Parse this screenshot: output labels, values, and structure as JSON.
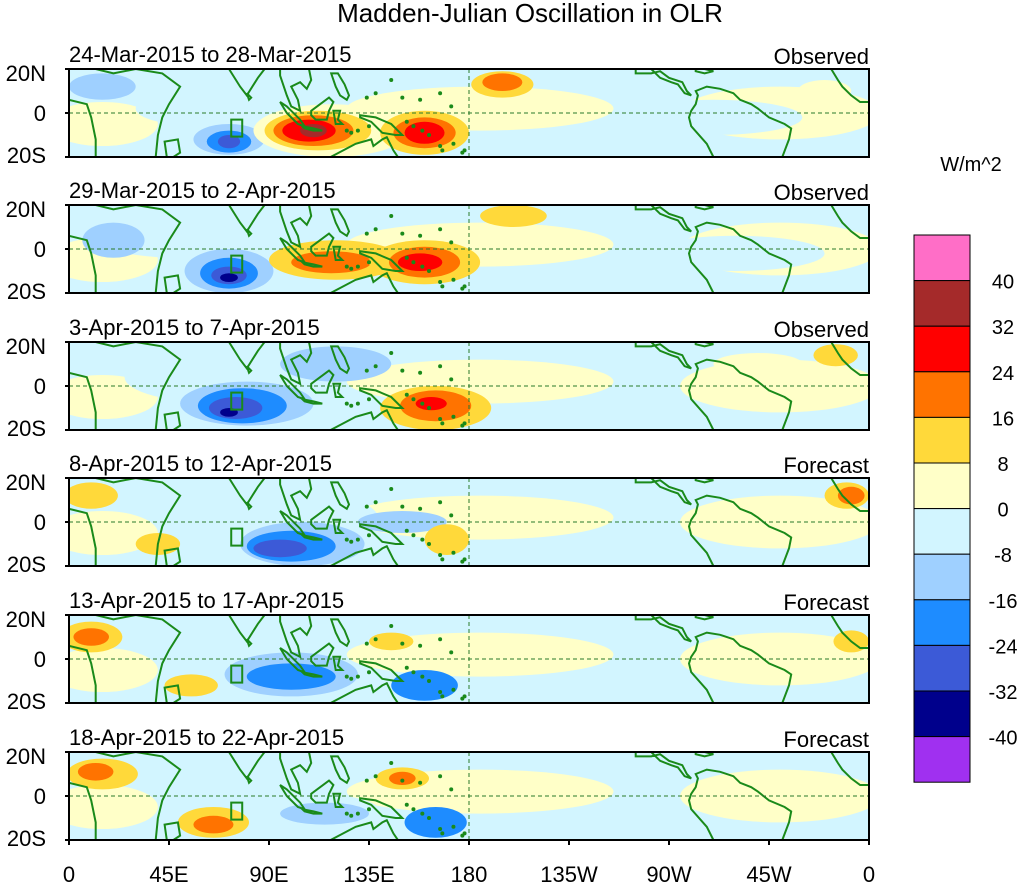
{
  "chart_data": {
    "type": "heatmap",
    "title": "Madden-Julian Oscillation in OLR",
    "units": "W/m^2",
    "xlabel": "",
    "ylabel": "",
    "x_ticks": [
      "0",
      "45E",
      "90E",
      "135E",
      "180",
      "135W",
      "90W",
      "45W",
      "0"
    ],
    "y_ticks": [
      "20N",
      "0",
      "20S"
    ],
    "xlim_deg_east": [
      0,
      360
    ],
    "ylim_deg_lat": [
      -20,
      20
    ],
    "colorbar": {
      "labels": [
        "40",
        "32",
        "24",
        "16",
        "8",
        "0",
        "-8",
        "-16",
        "-24",
        "-32",
        "-40"
      ],
      "levels": [
        {
          "range": "> 40",
          "color": "#ff6ec7"
        },
        {
          "range": "32 to 40",
          "color": "#a52a2a"
        },
        {
          "range": "24 to 32",
          "color": "#ff0000"
        },
        {
          "range": "16 to 24",
          "color": "#ff7300"
        },
        {
          "range": "8 to 16",
          "color": "#ffd93a"
        },
        {
          "range": "0 to 8",
          "color": "#ffffc8"
        },
        {
          "range": "-8 to 0",
          "color": "#d2f5ff"
        },
        {
          "range": "-16 to -8",
          "color": "#9fd0ff"
        },
        {
          "range": "-24 to -16",
          "color": "#1e8cff"
        },
        {
          "range": "-32 to -24",
          "color": "#3c5ad7"
        },
        {
          "range": "-40 to -32",
          "color": "#00008c"
        },
        {
          "range": "< -40",
          "color": "#a030f0"
        }
      ]
    },
    "panels": [
      {
        "period": "24-Mar-2015 to 28-Mar-2015",
        "kind": "Observed",
        "anomalies": [
          {
            "lon": 60,
            "lat": 2,
            "rx": 30,
            "ry": 8,
            "level": "-8 to 0"
          },
          {
            "lon": 15,
            "lat": 12,
            "rx": 15,
            "ry": 6,
            "level": "-16 to -8"
          },
          {
            "lon": 72,
            "lat": -12,
            "rx": 16,
            "ry": 7,
            "level": "-16 to -8"
          },
          {
            "lon": 72,
            "lat": -13,
            "rx": 10,
            "ry": 5,
            "level": "-24 to -16"
          },
          {
            "lon": 72,
            "lat": -13,
            "rx": 5,
            "ry": 3,
            "level": "-32 to -24"
          },
          {
            "lon": 118,
            "lat": -8,
            "rx": 35,
            "ry": 12,
            "level": "0 to 8"
          },
          {
            "lon": 112,
            "lat": -8,
            "rx": 24,
            "ry": 9,
            "level": "8 to 16"
          },
          {
            "lon": 110,
            "lat": -8,
            "rx": 18,
            "ry": 7,
            "level": "16 to 24"
          },
          {
            "lon": 108,
            "lat": -8,
            "rx": 12,
            "ry": 5,
            "level": "24 to 32"
          },
          {
            "lon": 110,
            "lat": -8,
            "rx": 6,
            "ry": 3,
            "level": "32 to 40"
          },
          {
            "lon": 160,
            "lat": -9,
            "rx": 20,
            "ry": 10,
            "level": "8 to 16"
          },
          {
            "lon": 160,
            "lat": -9,
            "rx": 14,
            "ry": 7,
            "level": "16 to 24"
          },
          {
            "lon": 160,
            "lat": -9,
            "rx": 9,
            "ry": 5,
            "level": "24 to 32"
          },
          {
            "lon": 195,
            "lat": 13,
            "rx": 14,
            "ry": 6,
            "level": "8 to 16"
          },
          {
            "lon": 195,
            "lat": 14,
            "rx": 9,
            "ry": 4,
            "level": "16 to 24"
          },
          {
            "lon": 290,
            "lat": -2,
            "rx": 40,
            "ry": 8,
            "level": "-8 to 0"
          },
          {
            "lon": 340,
            "lat": 10,
            "rx": 12,
            "ry": 5,
            "level": "0 to 8"
          }
        ]
      },
      {
        "period": "29-Mar-2015 to 2-Apr-2015",
        "kind": "Observed",
        "anomalies": [
          {
            "lon": 50,
            "lat": 6,
            "rx": 40,
            "ry": 10,
            "level": "-8 to 0"
          },
          {
            "lon": 20,
            "lat": 4,
            "rx": 14,
            "ry": 8,
            "level": "-16 to -8"
          },
          {
            "lon": 72,
            "lat": -10,
            "rx": 20,
            "ry": 10,
            "level": "-16 to -8"
          },
          {
            "lon": 72,
            "lat": -11,
            "rx": 13,
            "ry": 7,
            "level": "-24 to -16"
          },
          {
            "lon": 72,
            "lat": -12,
            "rx": 8,
            "ry": 4,
            "level": "-32 to -24"
          },
          {
            "lon": 72,
            "lat": -13,
            "rx": 4,
            "ry": 2,
            "level": "-40 to -32"
          },
          {
            "lon": 120,
            "lat": -5,
            "rx": 30,
            "ry": 9,
            "level": "8 to 16"
          },
          {
            "lon": 118,
            "lat": -6,
            "rx": 18,
            "ry": 5,
            "level": "16 to 24"
          },
          {
            "lon": 160,
            "lat": -6,
            "rx": 25,
            "ry": 10,
            "level": "8 to 16"
          },
          {
            "lon": 160,
            "lat": -6,
            "rx": 16,
            "ry": 7,
            "level": "16 to 24"
          },
          {
            "lon": 158,
            "lat": -6,
            "rx": 10,
            "ry": 4,
            "level": "24 to 32"
          },
          {
            "lon": 200,
            "lat": 15,
            "rx": 15,
            "ry": 5,
            "level": "8 to 16"
          },
          {
            "lon": 300,
            "lat": -2,
            "rx": 40,
            "ry": 8,
            "level": "-8 to 0"
          }
        ]
      },
      {
        "period": "3-Apr-2015 to 7-Apr-2015",
        "kind": "Observed",
        "anomalies": [
          {
            "lon": 70,
            "lat": 4,
            "rx": 45,
            "ry": 12,
            "level": "-8 to 0"
          },
          {
            "lon": 80,
            "lat": -8,
            "rx": 30,
            "ry": 10,
            "level": "-16 to -8"
          },
          {
            "lon": 78,
            "lat": -9,
            "rx": 20,
            "ry": 8,
            "level": "-24 to -16"
          },
          {
            "lon": 75,
            "lat": -10,
            "rx": 12,
            "ry": 5,
            "level": "-32 to -24"
          },
          {
            "lon": 72,
            "lat": -12,
            "rx": 4,
            "ry": 2,
            "level": "-40 to -32"
          },
          {
            "lon": 120,
            "lat": 10,
            "rx": 25,
            "ry": 8,
            "level": "-16 to -8"
          },
          {
            "lon": 165,
            "lat": -10,
            "rx": 25,
            "ry": 10,
            "level": "8 to 16"
          },
          {
            "lon": 165,
            "lat": -9,
            "rx": 16,
            "ry": 7,
            "level": "16 to 24"
          },
          {
            "lon": 163,
            "lat": -8,
            "rx": 7,
            "ry": 3,
            "level": "24 to 32"
          },
          {
            "lon": 345,
            "lat": 14,
            "rx": 10,
            "ry": 5,
            "level": "8 to 16"
          },
          {
            "lon": 310,
            "lat": 10,
            "rx": 20,
            "ry": 5,
            "level": "0 to 8"
          }
        ]
      },
      {
        "period": "8-Apr-2015 to 12-Apr-2015",
        "kind": "Forecast",
        "anomalies": [
          {
            "lon": 100,
            "lat": 0,
            "rx": 40,
            "ry": 15,
            "level": "-8 to 0"
          },
          {
            "lon": 105,
            "lat": -10,
            "rx": 28,
            "ry": 10,
            "level": "-16 to -8"
          },
          {
            "lon": 100,
            "lat": -11,
            "rx": 20,
            "ry": 7,
            "level": "-24 to -16"
          },
          {
            "lon": 95,
            "lat": -12,
            "rx": 12,
            "ry": 4,
            "level": "-32 to -24"
          },
          {
            "lon": 150,
            "lat": 0,
            "rx": 20,
            "ry": 5,
            "level": "-16 to -8"
          },
          {
            "lon": 170,
            "lat": -8,
            "rx": 10,
            "ry": 7,
            "level": "8 to 16"
          },
          {
            "lon": 10,
            "lat": 12,
            "rx": 12,
            "ry": 6,
            "level": "8 to 16"
          },
          {
            "lon": 40,
            "lat": -10,
            "rx": 10,
            "ry": 5,
            "level": "8 to 16"
          },
          {
            "lon": 350,
            "lat": 12,
            "rx": 10,
            "ry": 6,
            "level": "8 to 16"
          },
          {
            "lon": 352,
            "lat": 12,
            "rx": 6,
            "ry": 4,
            "level": "16 to 24"
          }
        ]
      },
      {
        "period": "13-Apr-2015 to 17-Apr-2015",
        "kind": "Forecast",
        "anomalies": [
          {
            "lon": 10,
            "lat": 10,
            "rx": 14,
            "ry": 7,
            "level": "8 to 16"
          },
          {
            "lon": 10,
            "lat": 10,
            "rx": 8,
            "ry": 4,
            "level": "16 to 24"
          },
          {
            "lon": 55,
            "lat": -12,
            "rx": 12,
            "ry": 5,
            "level": "8 to 16"
          },
          {
            "lon": 100,
            "lat": -7,
            "rx": 30,
            "ry": 10,
            "level": "-16 to -8"
          },
          {
            "lon": 100,
            "lat": -8,
            "rx": 20,
            "ry": 6,
            "level": "-24 to -16"
          },
          {
            "lon": 160,
            "lat": -12,
            "rx": 15,
            "ry": 7,
            "level": "-24 to -16"
          },
          {
            "lon": 145,
            "lat": 8,
            "rx": 10,
            "ry": 4,
            "level": "8 to 16"
          },
          {
            "lon": 352,
            "lat": 8,
            "rx": 8,
            "ry": 5,
            "level": "8 to 16"
          }
        ]
      },
      {
        "period": "18-Apr-2015 to 22-Apr-2015",
        "kind": "Forecast",
        "anomalies": [
          {
            "lon": 15,
            "lat": 10,
            "rx": 16,
            "ry": 7,
            "level": "8 to 16"
          },
          {
            "lon": 12,
            "lat": 11,
            "rx": 8,
            "ry": 4,
            "level": "16 to 24"
          },
          {
            "lon": 65,
            "lat": -12,
            "rx": 16,
            "ry": 7,
            "level": "8 to 16"
          },
          {
            "lon": 65,
            "lat": -13,
            "rx": 9,
            "ry": 4,
            "level": "16 to 24"
          },
          {
            "lon": 110,
            "lat": -7,
            "rx": 30,
            "ry": 8,
            "level": "-8 to 0"
          },
          {
            "lon": 115,
            "lat": -8,
            "rx": 20,
            "ry": 5,
            "level": "-16 to -8"
          },
          {
            "lon": 165,
            "lat": -12,
            "rx": 14,
            "ry": 7,
            "level": "-24 to -16"
          },
          {
            "lon": 150,
            "lat": 8,
            "rx": 12,
            "ry": 5,
            "level": "8 to 16"
          },
          {
            "lon": 150,
            "lat": 8,
            "rx": 6,
            "ry": 3,
            "level": "16 to 24"
          }
        ]
      }
    ]
  }
}
